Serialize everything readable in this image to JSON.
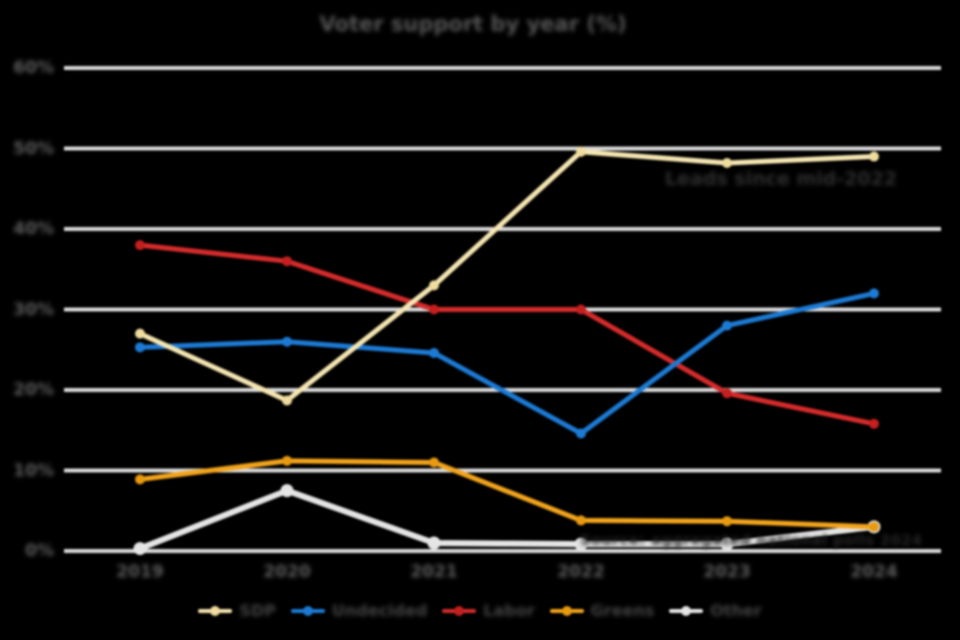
{
  "title": "Voter support by year (%)",
  "annotations": {
    "peak_note": "Leads since mid-2022",
    "source_note": "Source: aggregated national polls 2024"
  },
  "colors": {
    "background": "#000000",
    "gridline": "#D9D9D9",
    "title_text": "#565656",
    "axis_text": "#5d5d5d",
    "legend_text": "#434343",
    "annotation_text": "#2e2e2e"
  },
  "chart_data": {
    "type": "line",
    "x": [
      "2019",
      "2020",
      "2021",
      "2022",
      "2023",
      "2024"
    ],
    "yticks": [
      "60%",
      "50%",
      "40%",
      "30%",
      "20%",
      "10%",
      "0%"
    ],
    "ylim": [
      0,
      60
    ],
    "grid": "horizontal",
    "legend_position": "bottom",
    "series": [
      {
        "name": "SDP",
        "color": "#F5E6B2",
        "marker_color": "#F0DC9E",
        "values": [
          27.0,
          18.7,
          33.0,
          49.6,
          48.2,
          49.0
        ]
      },
      {
        "name": "Undecided",
        "color": "#1C7AD4",
        "marker_color": "#1C7AD4",
        "values": [
          25.3,
          26.0,
          24.6,
          14.6,
          28.0,
          32.0
        ]
      },
      {
        "name": "Labor",
        "color": "#D62B2B",
        "marker_color": "#C51F1F",
        "values": [
          38.0,
          36.0,
          30.0,
          30.0,
          19.6,
          15.8
        ]
      },
      {
        "name": "Greens",
        "color": "#F2A41C",
        "marker_color": "#E89A10",
        "values": [
          8.9,
          11.2,
          11.0,
          3.8,
          3.7,
          3.0
        ]
      },
      {
        "name": "Other",
        "color": "#E5E5E5",
        "marker_color": "#E5E5E5",
        "values": [
          0.3,
          7.5,
          1.0,
          0.85,
          0.85,
          3.0
        ]
      }
    ]
  }
}
